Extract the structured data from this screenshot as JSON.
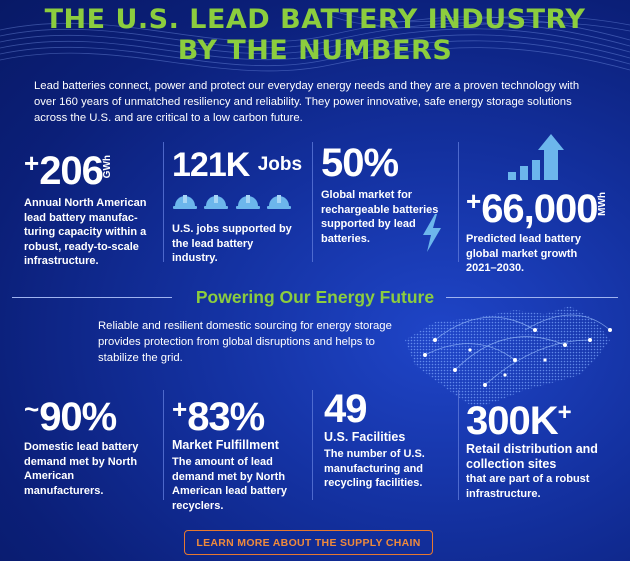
{
  "header": {
    "title_line1": "THE U.S. LEAD BATTERY INDUSTRY",
    "title_line2": "BY THE NUMBERS",
    "intro": "Lead batteries connect, power and protect our everyday energy needs and they are a proven technology with over 160 years of unmatched resiliency and reliability. They power innovative, safe energy storage solutions across the U.S. and are critical to a low carbon future."
  },
  "top_stats": [
    {
      "prefix": "+",
      "value": "206",
      "unit": "GWh",
      "description": "Annual North American lead battery manufac-turing capacity within a robust, ready-to-scale infrastructure."
    },
    {
      "value": "121K",
      "unit": "Jobs",
      "description": "U.S. jobs supported by the lead battery industry."
    },
    {
      "value": "50%",
      "description": "Global market for rechargeable batteries supported by lead batteries."
    },
    {
      "prefix": "+",
      "value": "66,000",
      "unit": "MWh",
      "description": "Predicted lead battery global market growth 2021–2030."
    }
  ],
  "section": {
    "title": "Powering Our Energy Future",
    "text": "Reliable and resilient domestic sourcing for energy storage provides protection from global disruptions and helps to stabilize the grid."
  },
  "bottom_stats": [
    {
      "prefix": "~",
      "value": "90%",
      "subtitle": "",
      "description": "Domestic lead battery demand met by North American manufacturers."
    },
    {
      "prefix": "+",
      "value": "83%",
      "subtitle": "Market Fulfillment",
      "description": "The amount of lead demand met by North American lead battery recyclers."
    },
    {
      "value": "49",
      "subtitle": "U.S. Facilities",
      "description": "The number of U.S. manufacturing and recycling facilities."
    },
    {
      "value": "300K",
      "suffix": "+",
      "subtitle": "Retail distribution and collection sites",
      "description": "that are part of a robust infrastructure."
    }
  ],
  "cta": {
    "label": "LEARN MORE ABOUT THE SUPPLY CHAIN"
  },
  "icons": {
    "hard_hat": "hard-hat-icon",
    "lightning": "lightning-bolt-icon",
    "growth": "growth-bars-arrow-icon",
    "map": "north-america-network-map"
  },
  "colors": {
    "title_green": "#8ccd3e",
    "background_blue": "#13309e",
    "hat_blue": "#6cb6ec",
    "cta_orange": "#e7782f"
  }
}
